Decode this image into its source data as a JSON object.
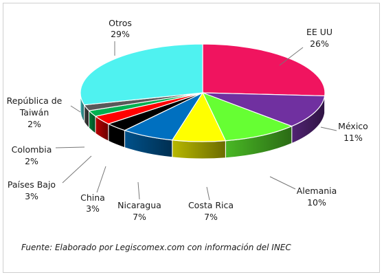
{
  "chart_data": {
    "type": "pie",
    "title": "",
    "slices": [
      {
        "label": "EE UU",
        "value": 26,
        "display": "26%",
        "color": "#f0145f"
      },
      {
        "label": "México",
        "value": 11,
        "display": "11%",
        "color": "#7030a0"
      },
      {
        "label": "Alemania",
        "value": 10,
        "display": "10%",
        "color": "#66ff33"
      },
      {
        "label": "Costa Rica",
        "value": 7,
        "display": "7%",
        "color": "#ffff00"
      },
      {
        "label": "Nicaragua",
        "value": 7,
        "display": "7%",
        "color": "#0070c0"
      },
      {
        "label": "China",
        "value": 3,
        "display": "3%",
        "color": "#000000"
      },
      {
        "label": "Países Bajo",
        "value": 3,
        "display": "3%",
        "color": "#ff0000"
      },
      {
        "label": "Colombia",
        "value": 2,
        "display": "2%",
        "color": "#00b050"
      },
      {
        "label": "República de Taiwán",
        "value": 2,
        "display": "2%",
        "color": "#595959"
      },
      {
        "label": "Otros",
        "value": 29,
        "display": "29%",
        "color": "#4ff2f0"
      }
    ],
    "labels": {
      "eeuu_name": "EE UU",
      "eeuu_pct": "26%",
      "mexico_name": "México",
      "mexico_pct": "11%",
      "alemania_name": "Alemania",
      "alemania_pct": "10%",
      "costarica_name": "Costa Rica",
      "costarica_pct": "7%",
      "nicaragua_name": "Nicaragua",
      "nicaragua_pct": "7%",
      "china_name": "China",
      "china_pct": "3%",
      "paises_name": "Países Bajo",
      "paises_pct": "3%",
      "colombia_name": "Colombia",
      "colombia_pct": "2%",
      "taiwan_name_1": "República de",
      "taiwan_name_2": "Taiwán",
      "taiwan_pct": "2%",
      "otros_name": "Otros",
      "otros_pct": "29%"
    },
    "legend": "none",
    "style": "3d-exploded-pie"
  },
  "source_note": "Fuente: Elaborado por Legiscomex.com con información del INEC"
}
